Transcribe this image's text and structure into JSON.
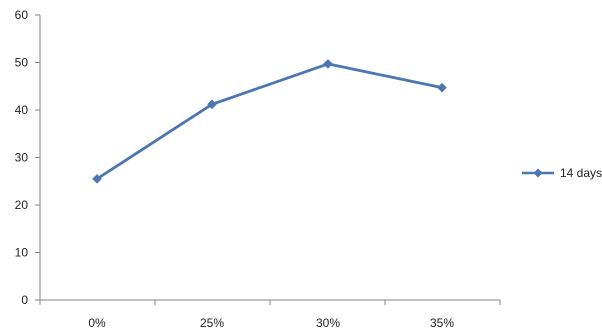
{
  "chart_data": {
    "type": "line",
    "categories": [
      "0%",
      "25%",
      "30%",
      "35%"
    ],
    "series": [
      {
        "name": "14 days",
        "values": [
          25.5,
          41.2,
          49.7,
          44.7
        ],
        "color": "#4a76b1",
        "marker": "diamond"
      }
    ],
    "title": "",
    "xlabel": "",
    "ylabel": "",
    "ylim": [
      0,
      60
    ],
    "yticks": [
      0,
      10,
      20,
      30,
      40,
      50,
      60
    ],
    "grid": false,
    "legend_position": "right"
  }
}
